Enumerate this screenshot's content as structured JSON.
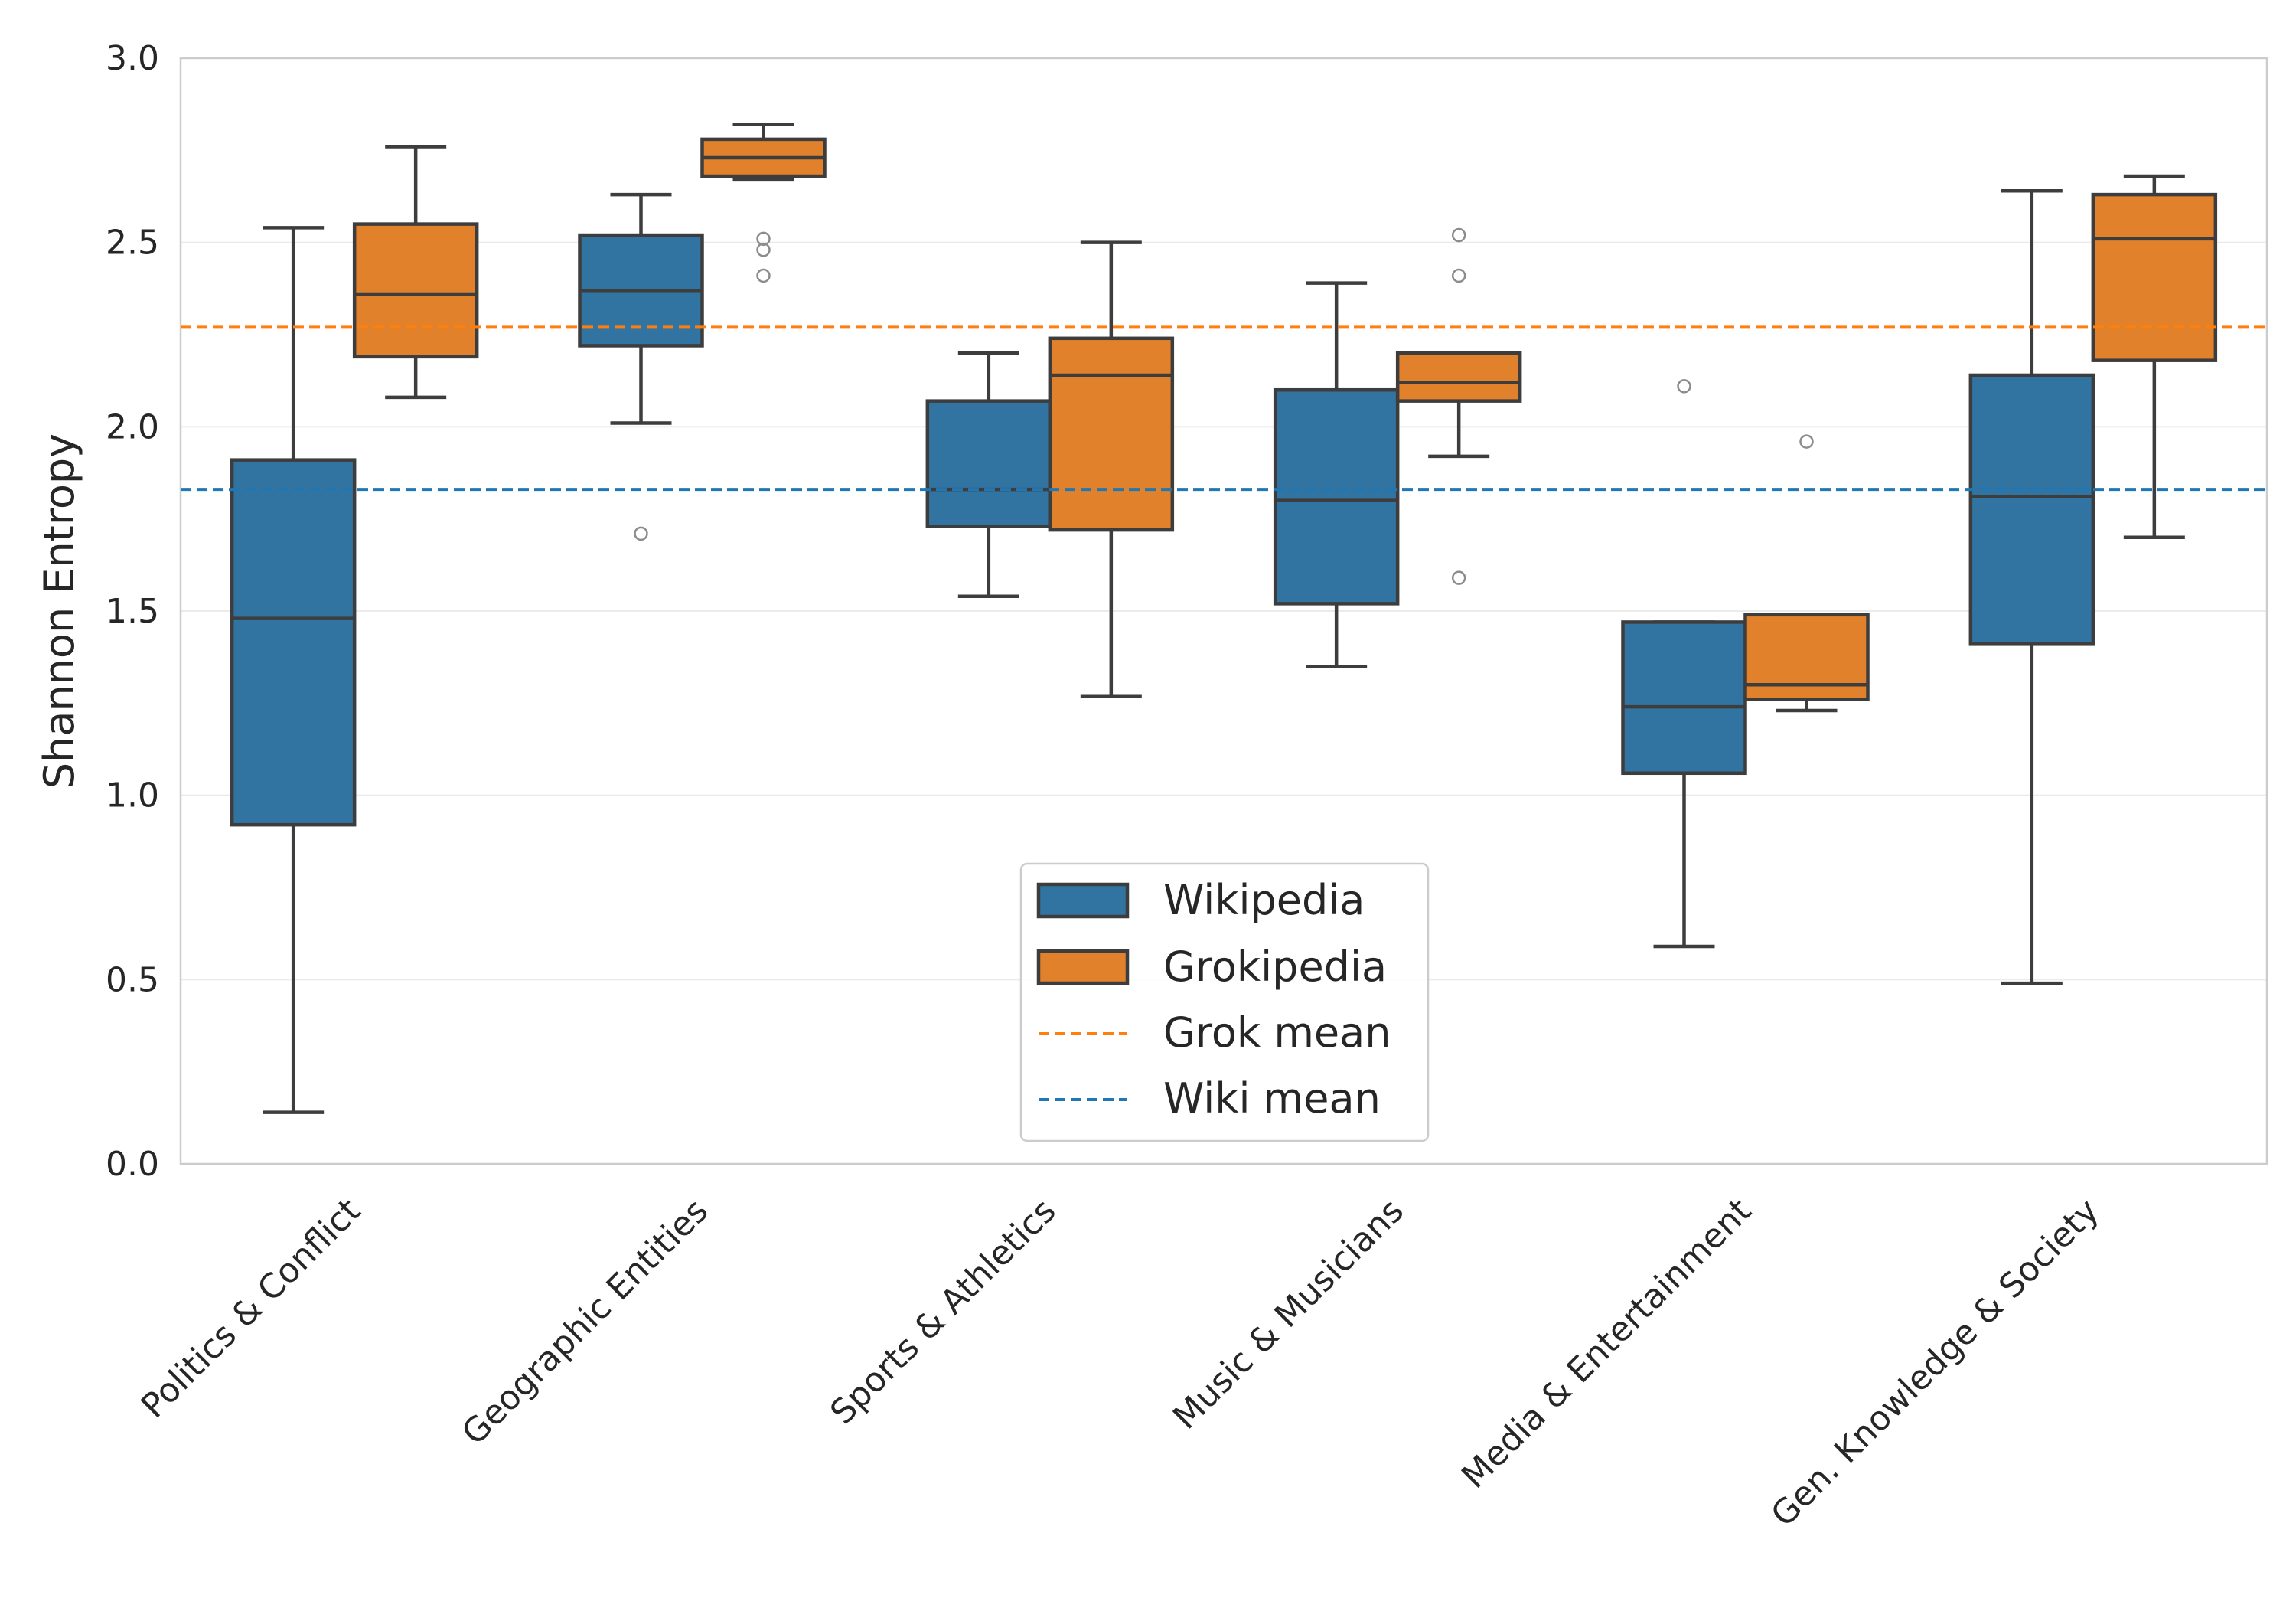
{
  "chart_data": {
    "type": "box",
    "title": "",
    "xlabel": "",
    "ylabel": "Shannon Entropy",
    "ylim": [
      0,
      3.0
    ],
    "yticks": [
      0.0,
      0.5,
      1.0,
      1.5,
      2.0,
      2.5,
      3.0
    ],
    "ytick_labels": [
      "0.0",
      "0.5",
      "1.0",
      "1.5",
      "2.0",
      "2.5",
      "3.0"
    ],
    "grid": true,
    "categories": [
      "Politics & Conflict",
      "Geographic Entities",
      "Sports & Athletics",
      "Music & Musicians",
      "Media & Entertainment",
      "Gen. Knowledge & Society"
    ],
    "series": [
      {
        "name": "Wikipedia",
        "color": "#3274a1",
        "boxes": [
          {
            "whislo": 0.14,
            "q1": 0.92,
            "med": 1.48,
            "q3": 1.91,
            "whishi": 2.54,
            "fliers": []
          },
          {
            "whislo": 2.01,
            "q1": 2.22,
            "med": 2.37,
            "q3": 2.52,
            "whishi": 2.63,
            "fliers": [
              1.71
            ]
          },
          {
            "whislo": 1.54,
            "q1": 1.73,
            "med": 1.83,
            "q3": 2.07,
            "whishi": 2.2,
            "fliers": []
          },
          {
            "whislo": 1.35,
            "q1": 1.52,
            "med": 1.8,
            "q3": 2.1,
            "whishi": 2.39,
            "fliers": []
          },
          {
            "whislo": 0.59,
            "q1": 1.06,
            "med": 1.24,
            "q3": 1.47,
            "whishi": 1.47,
            "fliers": [
              2.11
            ]
          },
          {
            "whislo": 0.49,
            "q1": 1.41,
            "med": 1.81,
            "q3": 2.14,
            "whishi": 2.64,
            "fliers": []
          }
        ]
      },
      {
        "name": "Grokipedia",
        "color": "#e1812c",
        "boxes": [
          {
            "whislo": 2.08,
            "q1": 2.19,
            "med": 2.36,
            "q3": 2.55,
            "whishi": 2.76,
            "fliers": []
          },
          {
            "whislo": 2.67,
            "q1": 2.68,
            "med": 2.73,
            "q3": 2.78,
            "whishi": 2.82,
            "fliers": [
              2.41,
              2.48,
              2.51
            ]
          },
          {
            "whislo": 1.27,
            "q1": 1.72,
            "med": 2.14,
            "q3": 2.24,
            "whishi": 2.5,
            "fliers": []
          },
          {
            "whislo": 1.92,
            "q1": 2.07,
            "med": 2.12,
            "q3": 2.2,
            "whishi": 2.2,
            "fliers": [
              1.59,
              2.41,
              2.52
            ]
          },
          {
            "whislo": 1.23,
            "q1": 1.26,
            "med": 1.3,
            "q3": 1.49,
            "whishi": 1.49,
            "fliers": [
              1.96
            ]
          },
          {
            "whislo": 1.7,
            "q1": 2.18,
            "med": 2.51,
            "q3": 2.63,
            "whishi": 2.68,
            "fliers": []
          }
        ]
      }
    ],
    "reference_lines": [
      {
        "name": "Grok mean",
        "y": 2.27,
        "color": "#ff7f0e",
        "style": "dashed"
      },
      {
        "name": "Wiki mean",
        "y": 1.83,
        "color": "#1f77b4",
        "style": "dashed"
      }
    ],
    "legend": {
      "placement": "lower-center",
      "entries": [
        "Wikipedia",
        "Grokipedia",
        "Grok mean",
        "Wiki mean"
      ]
    }
  }
}
